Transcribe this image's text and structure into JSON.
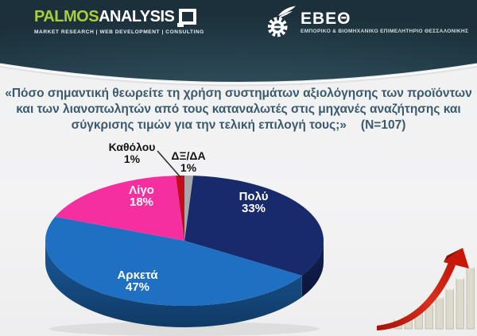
{
  "header": {
    "palmos": {
      "name_primary": "PALMOS",
      "name_secondary": "ANALYSIS",
      "tagline": "MARKET RESEARCH | WEB DEVELOPMENT | CONSULTING",
      "brand_color": "#a8cf38",
      "logo_icon": "speech-square-icon"
    },
    "ebeth": {
      "name": "ΕΒΕΘ",
      "tagline": "ΕΜΠΟΡΙΚΟ & ΒΙΟΜΗΧΑΝΙΚΟ ΕΠΙΜΕΛΗΤΗΡΙΟ ΘΕΣΣΑΛΟΝΙΚΗΣ",
      "logo_icon": "winged-gear-icon"
    }
  },
  "question": {
    "lines": [
      "«Πόσο σημαντική θεωρείτε τη χρήση συστημάτων αξιολόγησης των προϊόντων",
      "και των λιανοπωλητών από τους καταναλωτές στις μηχανές αναζήτησης και",
      "σύγκρισης τιμών για την τελική επιλογή τους;»"
    ],
    "sample_label": "(N=107)",
    "text_color": "#3b5a6d"
  },
  "chart_data": {
    "type": "pie",
    "effect": "3d",
    "title": "Πόσο σημαντική θεωρείτε τη χρήση συστημάτων αξιολόγησης των προϊόντων και των λιανοπωλητών από τους καταναλωτές στις μηχανές αναζήτησης και σύγκρισης τιμών για την τελική επιλογή τους;",
    "sample_size": 107,
    "order": "clockwise-from-top",
    "legend_position": "labels-on-slices",
    "slices": [
      {
        "label": "Πολύ",
        "value": 33,
        "pct_label": "33%",
        "color": "#182a6c"
      },
      {
        "label": "Αρκετά",
        "value": 47,
        "pct_label": "47%",
        "color": "#1f70c2"
      },
      {
        "label": "Λίγο",
        "value": 18,
        "pct_label": "18%",
        "color": "#f62fa0"
      },
      {
        "label": "Καθόλου",
        "value": 1,
        "pct_label": "1%",
        "color": "#c30d1d"
      },
      {
        "label": "ΔΞ/ΔΑ",
        "value": 1,
        "pct_label": "1%",
        "color": "#a7a8ac"
      }
    ],
    "decor": "rising-red-arrow-over-stairs-graphic"
  }
}
